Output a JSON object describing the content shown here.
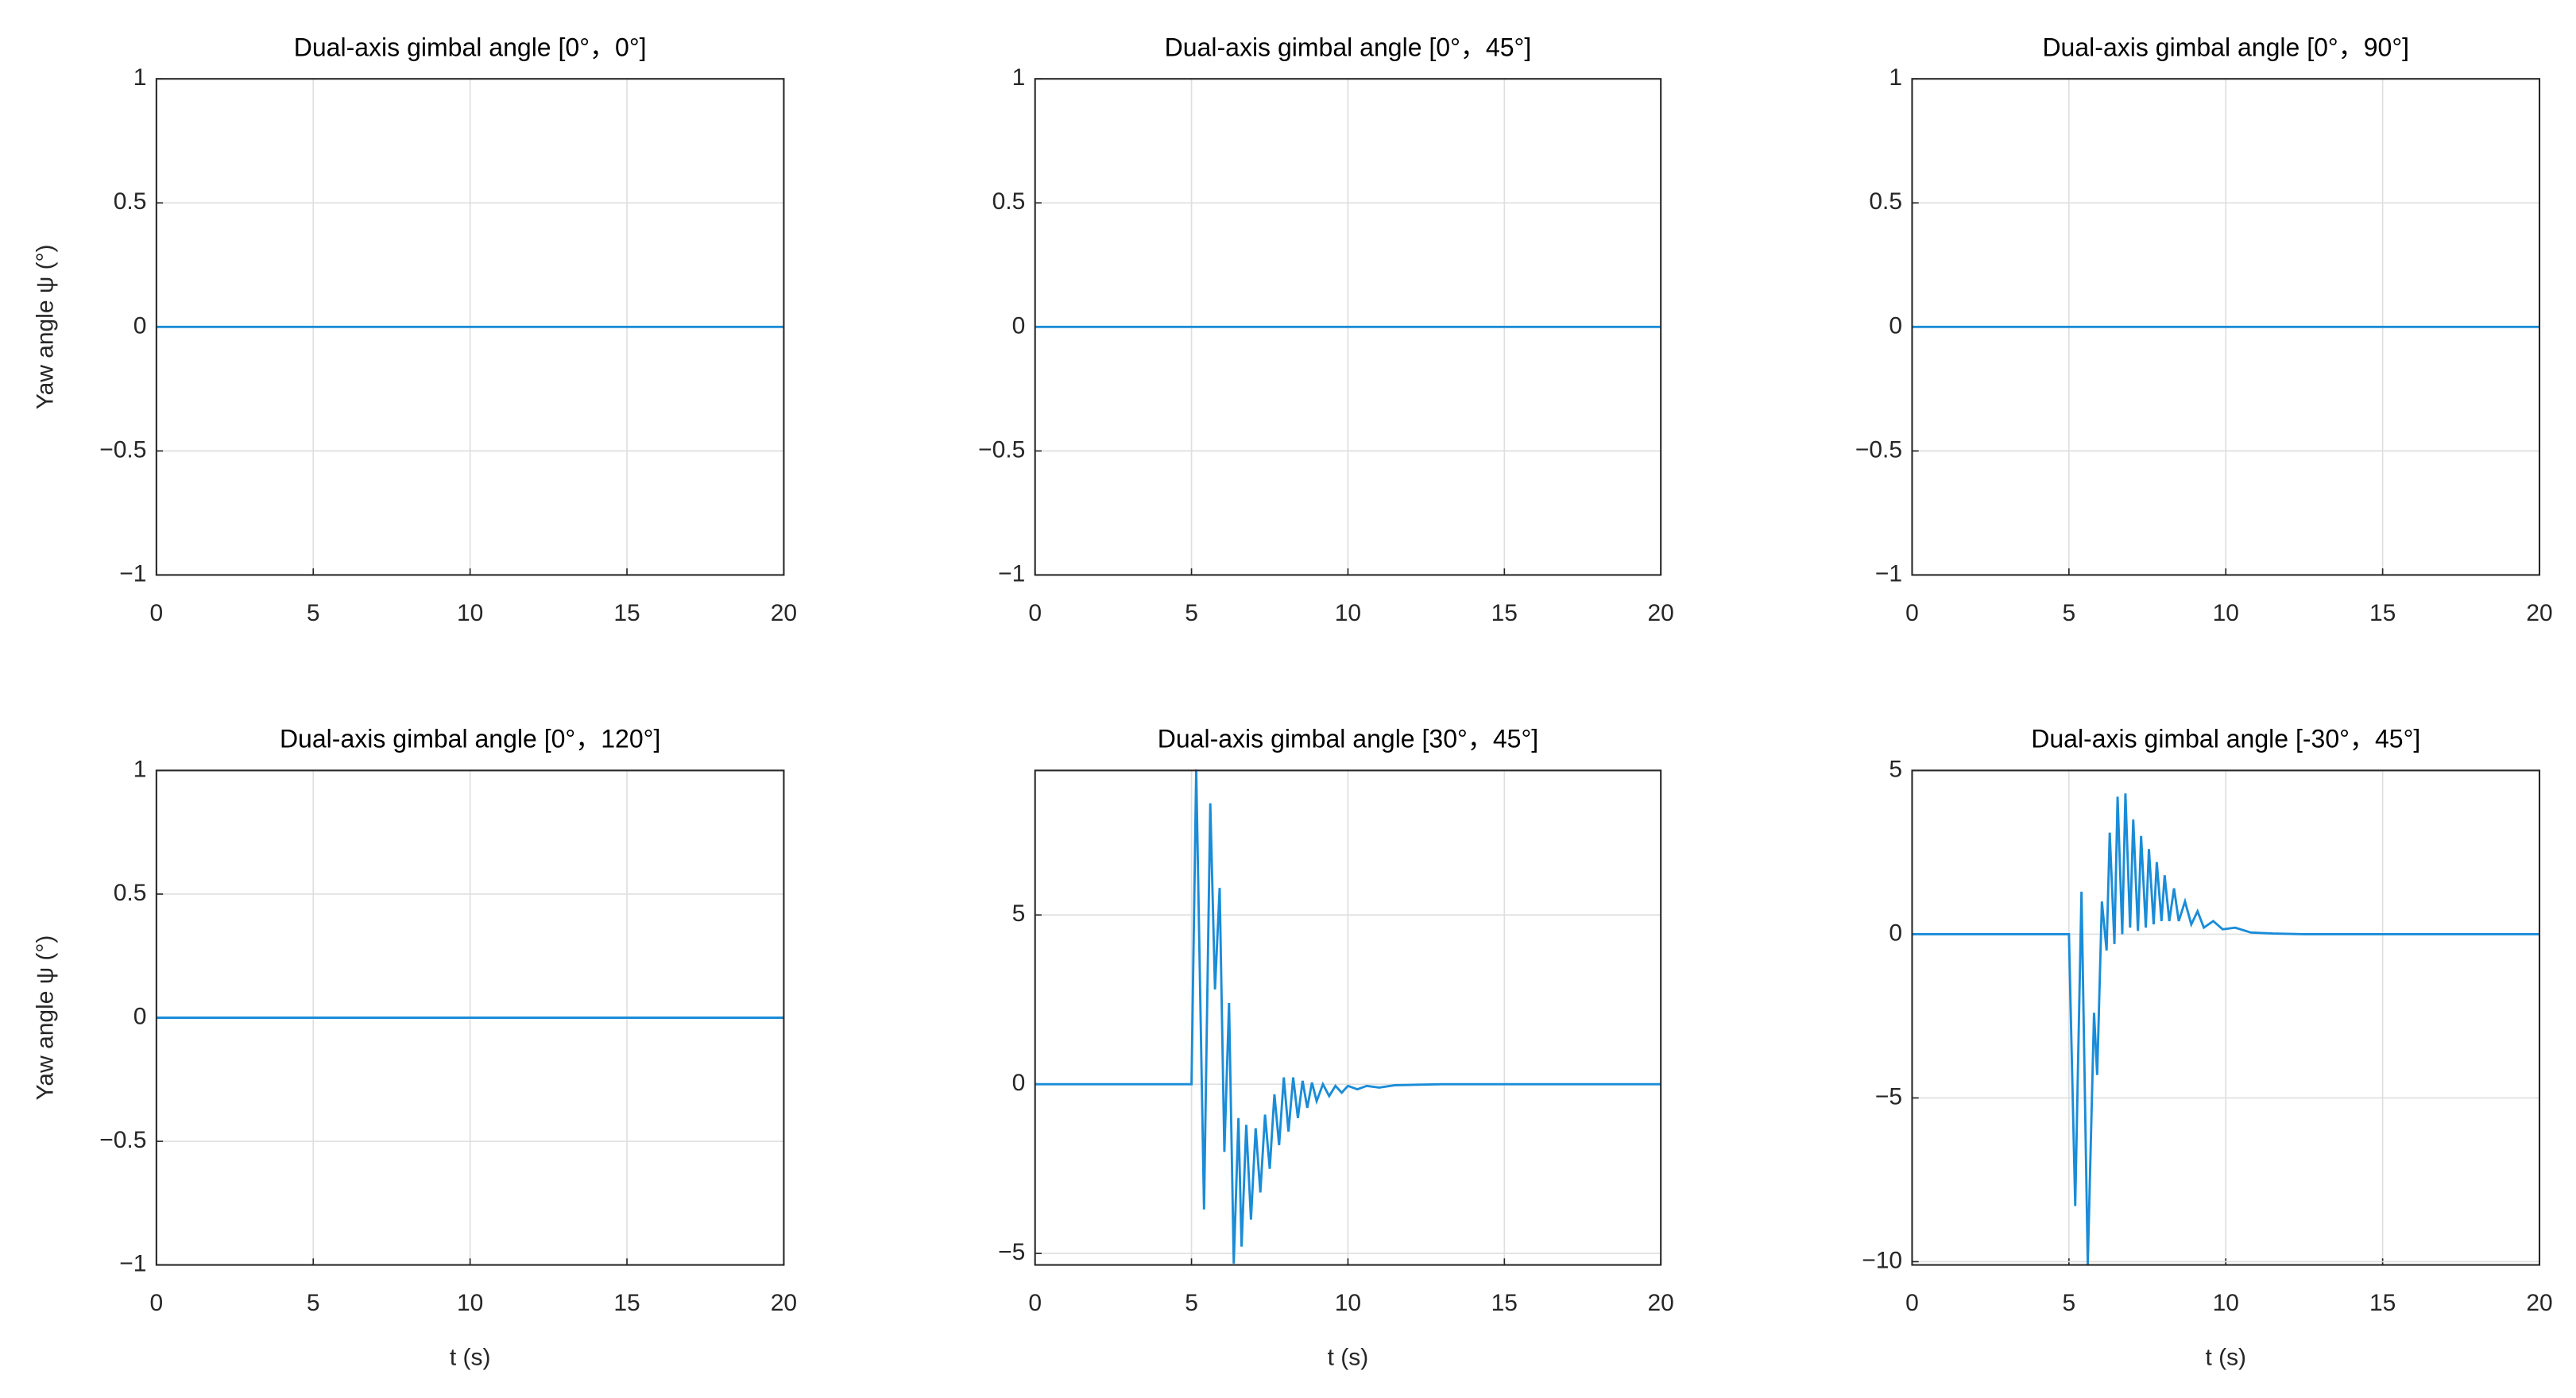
{
  "chart_data": [
    {
      "type": "line",
      "title": "Dual-axis gimbal angle  [0°，0°]",
      "ylabel": "Yaw angle  ψ (°)",
      "x": [
        0,
        20
      ],
      "values": [
        0,
        0
      ],
      "color": "#1a8cd8",
      "xlim": [
        0,
        20
      ],
      "ylim": [
        -1,
        1
      ],
      "xticks": [
        0,
        5,
        10,
        15,
        20
      ],
      "yticks": [
        {
          "value": -1,
          "label": "−1"
        },
        {
          "value": -0.5,
          "label": "−0.5"
        },
        0,
        0.5,
        1
      ],
      "grid": true
    },
    {
      "type": "line",
      "title": "Dual-axis gimbal angle  [0°，45°]",
      "x": [
        0,
        20
      ],
      "values": [
        0,
        0
      ],
      "color": "#1a8cd8",
      "xlim": [
        0,
        20
      ],
      "ylim": [
        -1,
        1
      ],
      "xticks": [
        0,
        5,
        10,
        15,
        20
      ],
      "yticks": [
        {
          "value": -1,
          "label": "−1"
        },
        {
          "value": -0.5,
          "label": "−0.5"
        },
        0,
        0.5,
        1
      ],
      "grid": true
    },
    {
      "type": "line",
      "title": "Dual-axis gimbal angle  [0°，90°]",
      "x": [
        0,
        20
      ],
      "values": [
        0,
        0
      ],
      "color": "#1a8cd8",
      "xlim": [
        0,
        20
      ],
      "ylim": [
        -1,
        1
      ],
      "xticks": [
        0,
        5,
        10,
        15,
        20
      ],
      "yticks": [
        {
          "value": -1,
          "label": "−1"
        },
        {
          "value": -0.5,
          "label": "−0.5"
        },
        0,
        0.5,
        1
      ],
      "grid": true
    },
    {
      "type": "line",
      "title": "Dual-axis gimbal angle  [0°，120°]",
      "ylabel": "Yaw angle  ψ (°)",
      "xlabel": "t (s)",
      "x": [
        0,
        20
      ],
      "values": [
        0,
        0
      ],
      "color": "#1a8cd8",
      "xlim": [
        0,
        20
      ],
      "ylim": [
        -1,
        1
      ],
      "xticks": [
        0,
        5,
        10,
        15,
        20
      ],
      "yticks": [
        {
          "value": -1,
          "label": "−1"
        },
        {
          "value": -0.5,
          "label": "−0.5"
        },
        0,
        0.5,
        1
      ],
      "grid": true
    },
    {
      "type": "line",
      "title": "Dual-axis gimbal angle  [30°，45°]",
      "xlabel": "t (s)",
      "x": [
        0,
        5,
        5.15,
        5.4,
        5.6,
        5.75,
        5.9,
        6.05,
        6.2,
        6.35,
        6.5,
        6.6,
        6.75,
        6.9,
        7.05,
        7.2,
        7.35,
        7.5,
        7.65,
        7.8,
        7.95,
        8.1,
        8.25,
        8.4,
        8.55,
        8.7,
        8.85,
        9,
        9.2,
        9.4,
        9.6,
        9.8,
        10,
        10.3,
        10.6,
        11,
        11.5,
        12,
        13,
        20
      ],
      "values": [
        0,
        0,
        9.3,
        -3.7,
        8.3,
        2.8,
        5.8,
        -2,
        2.4,
        -5.3,
        -1,
        -4.8,
        -1.2,
        -4,
        -1.3,
        -3.2,
        -0.9,
        -2.5,
        -0.3,
        -1.8,
        0.2,
        -1.4,
        0.2,
        -1,
        0.1,
        -0.7,
        0.05,
        -0.5,
        0,
        -0.35,
        -0.05,
        -0.25,
        -0.05,
        -0.15,
        -0.05,
        -0.1,
        -0.03,
        -0.02,
        0,
        0
      ],
      "color": "#1a8cd8",
      "xlim": [
        0,
        20
      ],
      "ylim": [
        -5.34,
        9.27
      ],
      "xticks": [
        0,
        5,
        10,
        15,
        20
      ],
      "yticks": [
        {
          "value": -5,
          "label": "−5"
        },
        0,
        5
      ],
      "grid": true
    },
    {
      "type": "line",
      "title": "Dual-axis gimbal angle  [-30°，45°]",
      "xlabel": "t (s)",
      "x": [
        0,
        5,
        5.2,
        5.4,
        5.6,
        5.8,
        5.9,
        6.05,
        6.2,
        6.3,
        6.45,
        6.55,
        6.7,
        6.8,
        6.95,
        7.05,
        7.2,
        7.3,
        7.45,
        7.55,
        7.7,
        7.8,
        7.95,
        8.05,
        8.2,
        8.35,
        8.5,
        8.7,
        8.9,
        9.1,
        9.3,
        9.6,
        9.9,
        10.3,
        10.8,
        11.5,
        12.5,
        20
      ],
      "values": [
        0,
        0,
        -8.3,
        1.3,
        -10.1,
        -2.4,
        -4.3,
        1,
        -0.5,
        3.1,
        -0.3,
        4.2,
        0,
        4.3,
        0.2,
        3.5,
        0.1,
        3,
        0.2,
        2.6,
        0.3,
        2.2,
        0.4,
        1.8,
        0.4,
        1.4,
        0.4,
        1,
        0.3,
        0.7,
        0.2,
        0.4,
        0.15,
        0.2,
        0.05,
        0.02,
        0,
        0
      ],
      "color": "#1a8cd8",
      "xlim": [
        0,
        20
      ],
      "ylim": [
        -10.1,
        5
      ],
      "xticks": [
        0,
        5,
        10,
        15,
        20
      ],
      "yticks": [
        {
          "value": -10,
          "label": "−10"
        },
        {
          "value": -5,
          "label": "−5"
        },
        0,
        5
      ],
      "grid": true
    }
  ]
}
